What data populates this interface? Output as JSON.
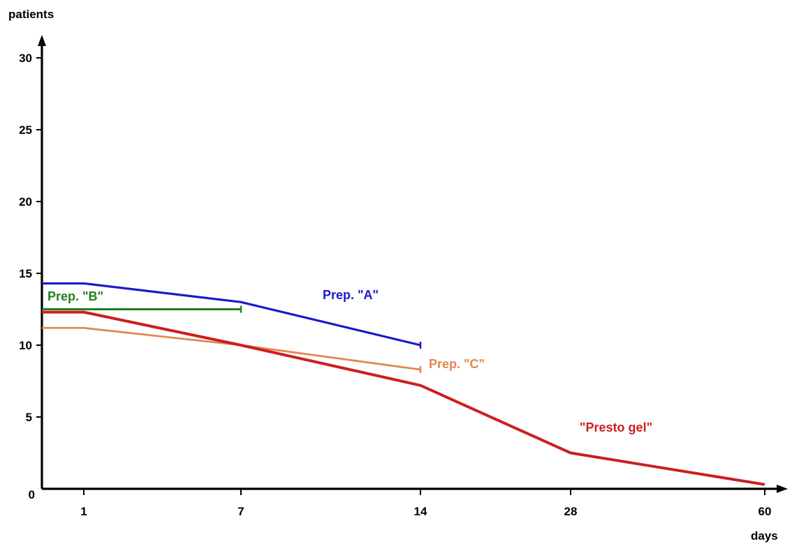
{
  "chart_data": {
    "type": "line",
    "title": "",
    "xlabel": "days",
    "ylabel": "patients",
    "x_ticks": [
      "1",
      "7",
      "14",
      "28",
      "60"
    ],
    "y_ticks": [
      "0",
      "5",
      "10",
      "15",
      "20",
      "25",
      "30"
    ],
    "ylim": [
      0,
      30
    ],
    "grid": false,
    "legend": "inline labels",
    "series": [
      {
        "name": "Prep. \"A\"",
        "color": "#1a1acc",
        "points": [
          {
            "x": "0",
            "y": 14.3
          },
          {
            "x": "1",
            "y": 14.3
          },
          {
            "x": "7",
            "y": 13.0
          },
          {
            "x": "14",
            "y": 10.0
          }
        ]
      },
      {
        "name": "Prep. \"B\"",
        "color": "#1f7f1f",
        "points": [
          {
            "x": "0",
            "y": 12.5
          },
          {
            "x": "7",
            "y": 12.5
          }
        ]
      },
      {
        "name": "Prep. \"C\"",
        "color": "#e08850",
        "points": [
          {
            "x": "0",
            "y": 11.2
          },
          {
            "x": "1",
            "y": 11.2
          },
          {
            "x": "7",
            "y": 10.0
          },
          {
            "x": "14",
            "y": 8.3
          }
        ]
      },
      {
        "name": "\"Presto gel\"",
        "color": "#cc1f1f",
        "points": [
          {
            "x": "0",
            "y": 12.3
          },
          {
            "x": "1",
            "y": 12.3
          },
          {
            "x": "7",
            "y": 10.0
          },
          {
            "x": "14",
            "y": 7.2
          },
          {
            "x": "28",
            "y": 2.5
          },
          {
            "x": "60",
            "y": 0.3
          }
        ]
      }
    ]
  }
}
